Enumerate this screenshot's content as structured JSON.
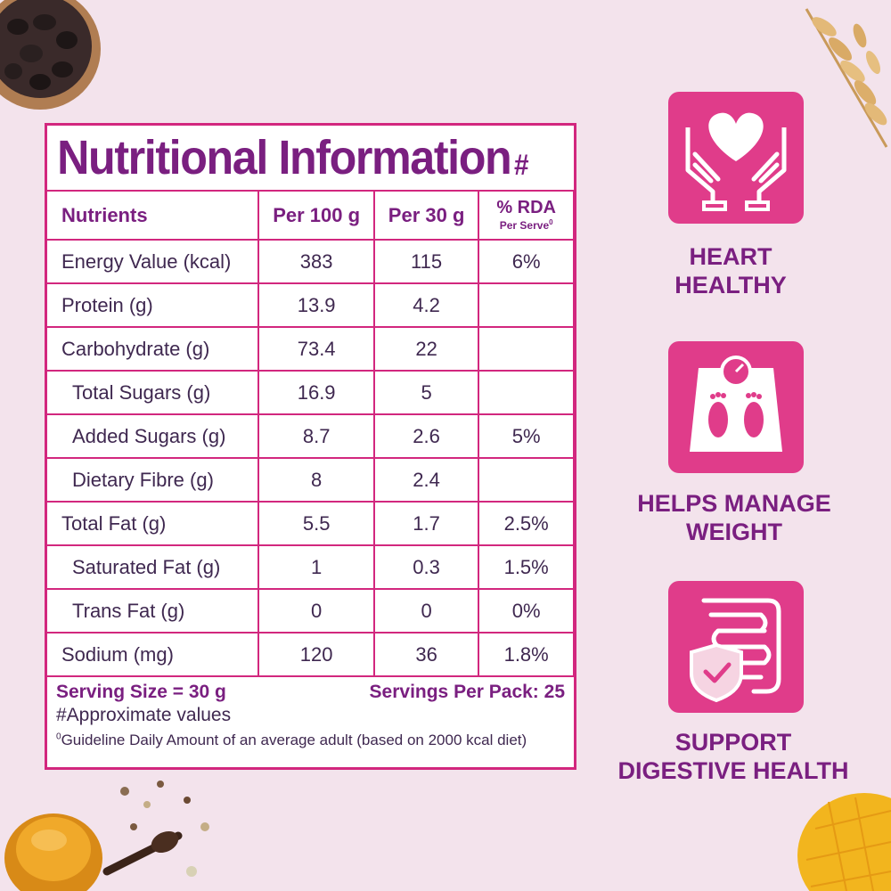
{
  "panel": {
    "title": "Nutritional Information",
    "title_mark": "#",
    "headers": {
      "nutrients": "Nutrients",
      "per100": "Per 100 g",
      "per30": "Per 30 g",
      "rda": "% RDA",
      "rda_sub": "Per Serve",
      "rda_mark": "0"
    },
    "rows": [
      {
        "name": "Energy Value (kcal)",
        "per100": "383",
        "per30": "115",
        "rda": "6%"
      },
      {
        "name": "Protein (g)",
        "per100": "13.9",
        "per30": "4.2",
        "rda": ""
      },
      {
        "name": "Carbohydrate (g)",
        "per100": "73.4",
        "per30": "22",
        "rda": ""
      },
      {
        "name": "Total Sugars (g)",
        "per100": "16.9",
        "per30": "5",
        "rda": ""
      },
      {
        "name": "Added Sugars (g)",
        "per100": "8.7",
        "per30": "2.6",
        "rda": "5%"
      },
      {
        "name": "Dietary Fibre (g)",
        "per100": "8",
        "per30": "2.4",
        "rda": ""
      },
      {
        "name": "Total Fat (g)",
        "per100": "5.5",
        "per30": "1.7",
        "rda": "2.5%"
      },
      {
        "name": "Saturated Fat (g)",
        "per100": "1",
        "per30": "0.3",
        "rda": "1.5%"
      },
      {
        "name": "Trans Fat (g)",
        "per100": "0",
        "per30": "0",
        "rda": "0%"
      },
      {
        "name": "Sodium (mg)",
        "per100": "120",
        "per30": "36",
        "rda": "1.8%"
      }
    ],
    "serving_size": "Serving Size = 30 g",
    "servings_per_pack": "Servings Per Pack: 25",
    "approx_note": "#Approximate values",
    "guideline_mark": "0",
    "guideline_note": "Guideline Daily Amount of an average adult (based on 2000 kcal diet)"
  },
  "benefits": [
    {
      "line1": "HEART",
      "line2": "HEALTHY",
      "icon": "heart-in-hands-icon"
    },
    {
      "line1": "HELPS MANAGE",
      "line2": "WEIGHT",
      "icon": "weighing-scale-icon"
    },
    {
      "line1": "SUPPORT",
      "line2": "DIGESTIVE HEALTH",
      "icon": "digestive-shield-icon"
    }
  ],
  "colors": {
    "background": "#f3e3ec",
    "accent": "#d2277e",
    "tile": "#e03c8a",
    "heading": "#7a1f80",
    "text": "#3f2850"
  }
}
